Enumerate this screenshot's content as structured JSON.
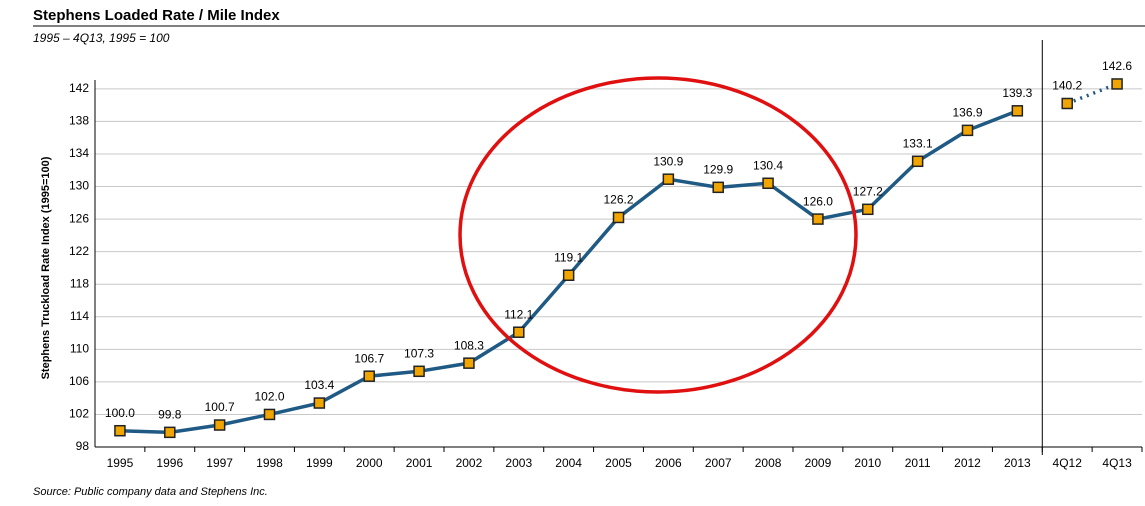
{
  "chart_data": {
    "type": "line",
    "title": "Stephens Loaded Rate / Mile Index",
    "subtitle": "1995 – 4Q13, 1995 = 100",
    "y_label": "Stephens Truckload Rate Index (1995=100)",
    "source": "Source: Public company data and Stephens Inc.",
    "categories": [
      "1995",
      "1996",
      "1997",
      "1998",
      "1999",
      "2000",
      "2001",
      "2002",
      "2003",
      "2004",
      "2005",
      "2006",
      "2007",
      "2008",
      "2009",
      "2010",
      "2011",
      "2012",
      "2013",
      "4Q12",
      "4Q13"
    ],
    "series": [
      {
        "color": "#1f5a85",
        "dashed": false,
        "values": [
          100.0,
          99.8,
          100.7,
          102.0,
          103.4,
          106.7,
          107.3,
          108.3,
          112.1,
          119.1,
          126.2,
          130.9,
          129.9,
          130.4,
          126.0,
          127.2,
          133.1,
          136.9,
          139.3,
          null,
          null
        ],
        "value_labels": [
          "100.0",
          "99.8",
          "100.7",
          "102.0",
          "103.4",
          "106.7",
          "107.3",
          "108.3",
          "112.1",
          "119.1",
          "126.2",
          "130.9",
          "129.9",
          "130.4",
          "126.0",
          "127.2",
          "133.1",
          "136.9",
          "139.3",
          null,
          null
        ]
      },
      {
        "color": "#1f5a85",
        "dashed": true,
        "values": [
          null,
          null,
          null,
          null,
          null,
          null,
          null,
          null,
          null,
          null,
          null,
          null,
          null,
          null,
          null,
          null,
          null,
          null,
          null,
          140.2,
          142.6
        ],
        "value_labels": [
          null,
          null,
          null,
          null,
          null,
          null,
          null,
          null,
          null,
          null,
          null,
          null,
          null,
          null,
          null,
          null,
          null,
          null,
          null,
          "140.2",
          "142.6"
        ]
      }
    ],
    "marker_color": "#f0a500",
    "ylim": [
      98,
      148
    ],
    "yticks": [
      98,
      102,
      106,
      110,
      114,
      118,
      122,
      126,
      130,
      134,
      138,
      142
    ],
    "grid": true
  }
}
